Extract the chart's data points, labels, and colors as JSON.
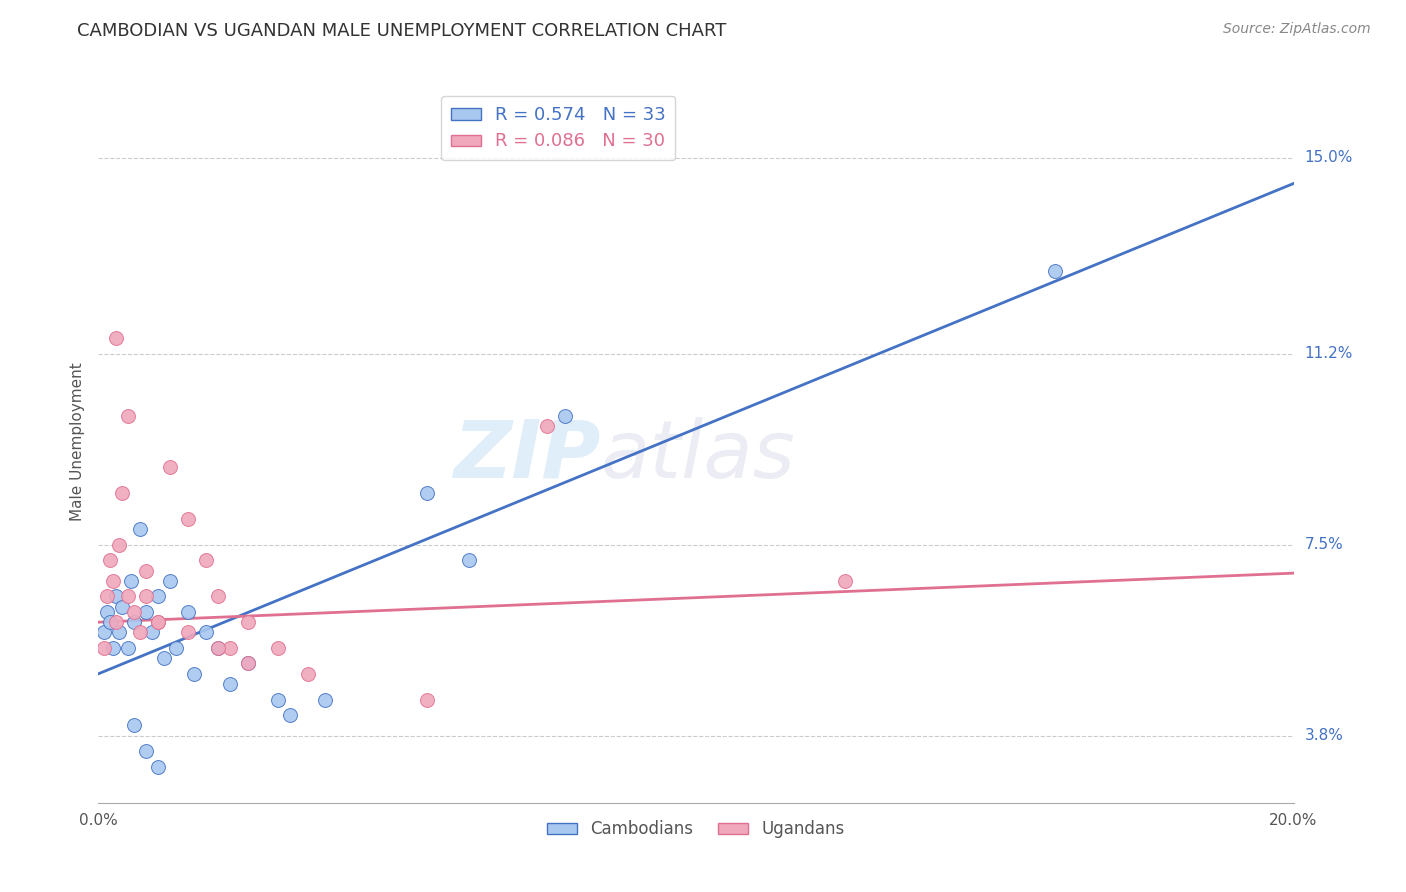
{
  "title": "CAMBODIAN VS UGANDAN MALE UNEMPLOYMENT CORRELATION CHART",
  "source": "Source: ZipAtlas.com",
  "ylabel": "Male Unemployment",
  "ytick_labels": [
    "3.8%",
    "7.5%",
    "11.2%",
    "15.0%"
  ],
  "ytick_values": [
    3.8,
    7.5,
    11.2,
    15.0
  ],
  "xlim": [
    0.0,
    20.0
  ],
  "ylim": [
    2.5,
    16.5
  ],
  "color_cambodian": "#a8c8f0",
  "color_ugandan": "#f0a8bc",
  "color_line_cambodian": "#4472c4",
  "color_line_ugandan": "#e07090",
  "watermark_zip": "ZIP",
  "watermark_atlas": "atlas",
  "camb_line_x0": 0.0,
  "camb_line_y0": 5.0,
  "camb_line_x1": 20.0,
  "camb_line_y1": 14.5,
  "ugan_line_x0": 0.0,
  "ugan_line_y0": 6.0,
  "ugan_line_x1": 20.0,
  "ugan_line_y1": 6.95,
  "cambodian_x": [
    0.1,
    0.15,
    0.2,
    0.25,
    0.3,
    0.35,
    0.4,
    0.5,
    0.55,
    0.6,
    0.7,
    0.8,
    0.9,
    1.0,
    1.1,
    1.2,
    1.3,
    1.5,
    1.6,
    1.8,
    2.0,
    2.2,
    2.5,
    3.0,
    3.2,
    3.8,
    5.5,
    6.2,
    7.8,
    16.0,
    0.6,
    0.8,
    1.0
  ],
  "cambodian_y": [
    5.8,
    6.2,
    6.0,
    5.5,
    6.5,
    5.8,
    6.3,
    5.5,
    6.8,
    6.0,
    7.8,
    6.2,
    5.8,
    6.5,
    5.3,
    6.8,
    5.5,
    6.2,
    5.0,
    5.8,
    5.5,
    4.8,
    5.2,
    4.5,
    4.2,
    4.5,
    8.5,
    7.2,
    10.0,
    12.8,
    4.0,
    3.5,
    3.2
  ],
  "ugandan_x": [
    0.1,
    0.15,
    0.2,
    0.25,
    0.3,
    0.35,
    0.4,
    0.5,
    0.6,
    0.7,
    0.8,
    1.0,
    1.2,
    1.5,
    1.8,
    2.0,
    2.2,
    2.5,
    3.0,
    3.5,
    5.5,
    7.5,
    12.5,
    0.3,
    0.5,
    0.8,
    1.0,
    1.5,
    2.0,
    2.5
  ],
  "ugandan_y": [
    5.5,
    6.5,
    7.2,
    6.8,
    6.0,
    7.5,
    8.5,
    6.5,
    6.2,
    5.8,
    7.0,
    6.0,
    9.0,
    8.0,
    7.2,
    6.5,
    5.5,
    6.0,
    5.5,
    5.0,
    4.5,
    9.8,
    6.8,
    11.5,
    10.0,
    6.5,
    6.0,
    5.8,
    5.5,
    5.2
  ]
}
